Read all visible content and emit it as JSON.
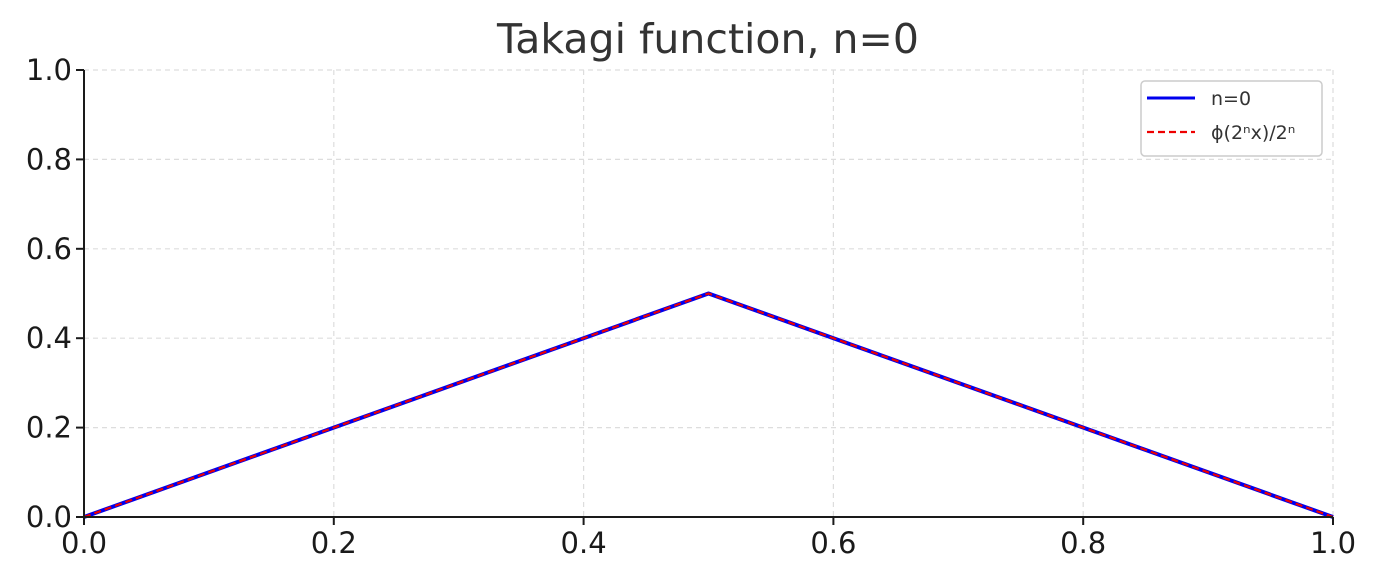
{
  "chart_data": {
    "type": "line",
    "title": "Takagi function, n=0",
    "xlabel": "",
    "ylabel": "",
    "xlim": [
      0.0,
      1.0
    ],
    "ylim": [
      0.0,
      1.0
    ],
    "xticks": [
      "0.0",
      "0.2",
      "0.4",
      "0.6",
      "0.8",
      "1.0"
    ],
    "yticks": [
      "0.0",
      "0.2",
      "0.4",
      "0.6",
      "0.8",
      "1.0"
    ],
    "grid": true,
    "legend_position": "top-right",
    "series": [
      {
        "name": "n=0",
        "color": "#0000ee",
        "style": "solid",
        "x": [
          0.0,
          0.5,
          1.0
        ],
        "y": [
          0.0,
          0.5,
          0.0
        ]
      },
      {
        "name": "ϕ(2ⁿx)/2ⁿ",
        "color": "#ee0000",
        "style": "dashed",
        "x": [
          0.0,
          0.5,
          1.0
        ],
        "y": [
          0.0,
          0.5,
          0.0
        ]
      }
    ]
  }
}
